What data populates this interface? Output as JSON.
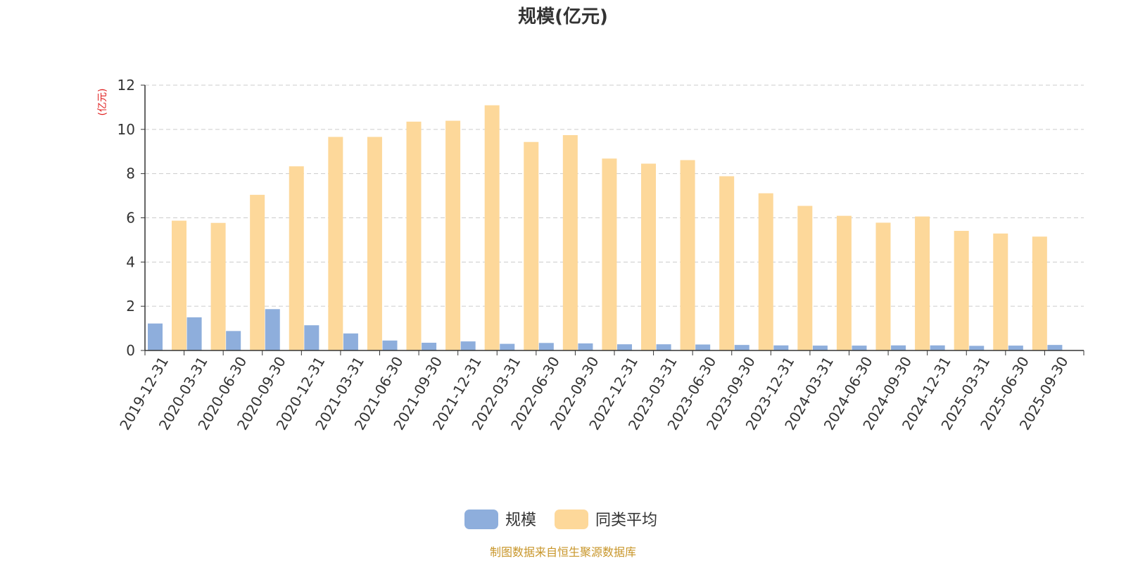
{
  "chart_data": {
    "type": "bar",
    "title": "规模(亿元)",
    "ylabel": "(亿元)",
    "xlabel": "",
    "ylim": [
      0,
      12
    ],
    "yticks": [
      0,
      2,
      4,
      6,
      8,
      10,
      12
    ],
    "grid": true,
    "legend_position": "bottom",
    "categories": [
      "2019-12-31",
      "2020-03-31",
      "2020-06-30",
      "2020-09-30",
      "2020-12-31",
      "2021-03-31",
      "2021-06-30",
      "2021-09-30",
      "2021-12-31",
      "2022-03-31",
      "2022-06-30",
      "2022-09-30",
      "2022-12-31",
      "2023-03-31",
      "2023-06-30",
      "2023-09-30",
      "2023-12-31",
      "2024-03-31",
      "2024-06-30",
      "2024-09-30",
      "2024-12-31",
      "2025-03-31",
      "2025-06-30",
      "2025-09-30"
    ],
    "series": [
      {
        "name": "规模",
        "color": "#8eaedc",
        "values": [
          1.22,
          1.5,
          0.88,
          1.87,
          1.14,
          0.77,
          0.45,
          0.35,
          0.41,
          0.3,
          0.34,
          0.32,
          0.28,
          0.28,
          0.27,
          0.25,
          0.23,
          0.22,
          0.22,
          0.23,
          0.23,
          0.21,
          0.22,
          0.25
        ]
      },
      {
        "name": "同类平均",
        "color": "#fdd89a",
        "values": [
          5.87,
          5.77,
          7.04,
          8.33,
          9.66,
          9.66,
          10.35,
          10.39,
          11.09,
          9.43,
          9.74,
          8.68,
          8.45,
          8.61,
          7.88,
          7.11,
          6.54,
          6.09,
          5.78,
          6.06,
          5.41,
          5.29,
          5.15,
          null
        ]
      }
    ]
  },
  "source_note": "制图数据来自恒生聚源数据库"
}
